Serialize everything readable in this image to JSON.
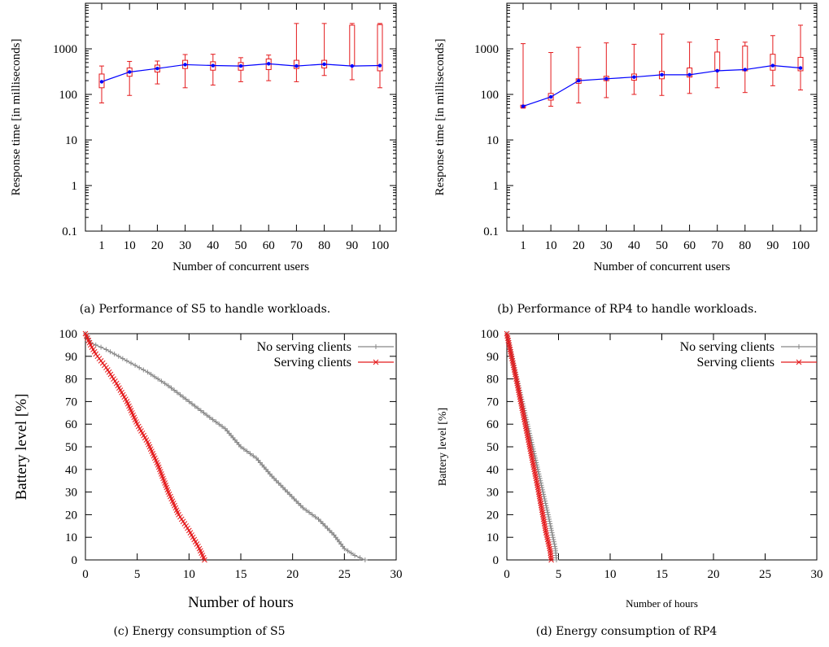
{
  "chart_data": [
    {
      "type": "line",
      "subtype": "boxplot-with-median-line",
      "caption": "(a) Performance of S5 to handle workloads.",
      "xlabel": "Number of concurrent users",
      "ylabel": "Response time [in milliseconds]",
      "yscale": "log",
      "ylim": [
        0.1,
        10000
      ],
      "yticks": [
        "0.1",
        "1",
        "10",
        "100",
        "1000"
      ],
      "categories": [
        "1",
        "10",
        "20",
        "30",
        "40",
        "50",
        "60",
        "70",
        "80",
        "90",
        "100"
      ],
      "colors": {
        "box": "#e41a1c",
        "median_line": "#0000ff"
      },
      "series": [
        {
          "median": [
            190,
            310,
            370,
            450,
            430,
            420,
            470,
            420,
            460,
            420,
            430
          ],
          "q1": [
            140,
            250,
            310,
            370,
            340,
            340,
            350,
            370,
            380,
            420,
            330
          ],
          "q3": [
            280,
            380,
            440,
            560,
            520,
            500,
            600,
            560,
            560,
            3300,
            3400
          ],
          "min": [
            65,
            95,
            170,
            140,
            160,
            190,
            200,
            190,
            260,
            210,
            140
          ],
          "max": [
            420,
            530,
            540,
            750,
            760,
            640,
            730,
            3600,
            3600,
            3600,
            3600
          ]
        }
      ]
    },
    {
      "type": "line",
      "subtype": "boxplot-with-median-line",
      "caption": "(b) Performance of RP4 to handle workloads.",
      "xlabel": "Number of concurrent users",
      "ylabel": "Response time [in milliseconds]",
      "yscale": "log",
      "ylim": [
        0.1,
        10000
      ],
      "yticks": [
        "0.1",
        "1",
        "10",
        "100",
        "1000"
      ],
      "categories": [
        "1",
        "10",
        "20",
        "30",
        "40",
        "50",
        "60",
        "70",
        "80",
        "90",
        "100"
      ],
      "colors": {
        "box": "#e41a1c",
        "median_line": "#0000ff"
      },
      "series": [
        {
          "median": [
            55,
            88,
            200,
            220,
            240,
            270,
            270,
            330,
            350,
            430,
            380
          ],
          "q1": [
            52,
            75,
            175,
            200,
            205,
            220,
            240,
            340,
            330,
            340,
            330
          ],
          "q3": [
            58,
            105,
            220,
            250,
            280,
            320,
            380,
            850,
            1150,
            760,
            650
          ],
          "min": [
            50,
            55,
            65,
            85,
            100,
            95,
            105,
            140,
            110,
            155,
            125
          ],
          "max": [
            1300,
            830,
            1080,
            1350,
            1260,
            2100,
            1400,
            1600,
            1400,
            1950,
            3300
          ]
        }
      ]
    },
    {
      "type": "line",
      "caption": "(c) Energy consumption of S5",
      "xlabel": "Number of hours",
      "ylabel": "Battery level [%]",
      "xlim": [
        0,
        30
      ],
      "ylim": [
        0,
        100
      ],
      "xticks": [
        "0",
        "5",
        "10",
        "15",
        "20",
        "25",
        "30"
      ],
      "yticks": [
        "0",
        "10",
        "20",
        "30",
        "40",
        "50",
        "60",
        "70",
        "80",
        "90",
        "100"
      ],
      "legend_position": "top-right",
      "series": [
        {
          "name": "No serving clients",
          "color": "#888888",
          "marker": "+",
          "points": [
            [
              0,
              100
            ],
            [
              0.5,
              96
            ],
            [
              2,
              93
            ],
            [
              4,
              88
            ],
            [
              6,
              83
            ],
            [
              8,
              77
            ],
            [
              10,
              70
            ],
            [
              12,
              63
            ],
            [
              13.5,
              58
            ],
            [
              15,
              50
            ],
            [
              16.5,
              45
            ],
            [
              18,
              37
            ],
            [
              19.5,
              30
            ],
            [
              21,
              23
            ],
            [
              22.5,
              18
            ],
            [
              24,
              11
            ],
            [
              25,
              5
            ],
            [
              26,
              2
            ],
            [
              27,
              0
            ]
          ]
        },
        {
          "name": "Serving clients",
          "color": "#e41a1c",
          "marker": "x",
          "points": [
            [
              0,
              100
            ],
            [
              0.5,
              95
            ],
            [
              1,
              91
            ],
            [
              2,
              85
            ],
            [
              3,
              78
            ],
            [
              4,
              70
            ],
            [
              5,
              60
            ],
            [
              6,
              52
            ],
            [
              7,
              42
            ],
            [
              8,
              30
            ],
            [
              9,
              20
            ],
            [
              10,
              13
            ],
            [
              11,
              5
            ],
            [
              11.5,
              0
            ]
          ]
        }
      ]
    },
    {
      "type": "line",
      "caption": "(d) Energy consumption of RP4",
      "xlabel": "Number of hours",
      "ylabel": "Battery level [%]",
      "xlim": [
        0,
        30
      ],
      "ylim": [
        0,
        100
      ],
      "xticks": [
        "0",
        "5",
        "10",
        "15",
        "20",
        "25",
        "30"
      ],
      "yticks": [
        "0",
        "10",
        "20",
        "30",
        "40",
        "50",
        "60",
        "70",
        "80",
        "90",
        "100"
      ],
      "legend_position": "top-right",
      "series": [
        {
          "name": "No serving clients",
          "color": "#888888",
          "marker": "+",
          "points": [
            [
              0,
              100
            ],
            [
              1,
              80
            ],
            [
              2,
              60
            ],
            [
              3,
              40
            ],
            [
              4,
              20
            ],
            [
              4.7,
              5
            ],
            [
              4.8,
              0
            ]
          ]
        },
        {
          "name": "Serving clients",
          "color": "#e41a1c",
          "marker": "x",
          "points": [
            [
              0,
              100
            ],
            [
              1,
              78
            ],
            [
              2,
              55
            ],
            [
              3,
              32
            ],
            [
              3.8,
              12
            ],
            [
              4.2,
              4
            ],
            [
              4.3,
              0
            ]
          ]
        }
      ]
    }
  ]
}
